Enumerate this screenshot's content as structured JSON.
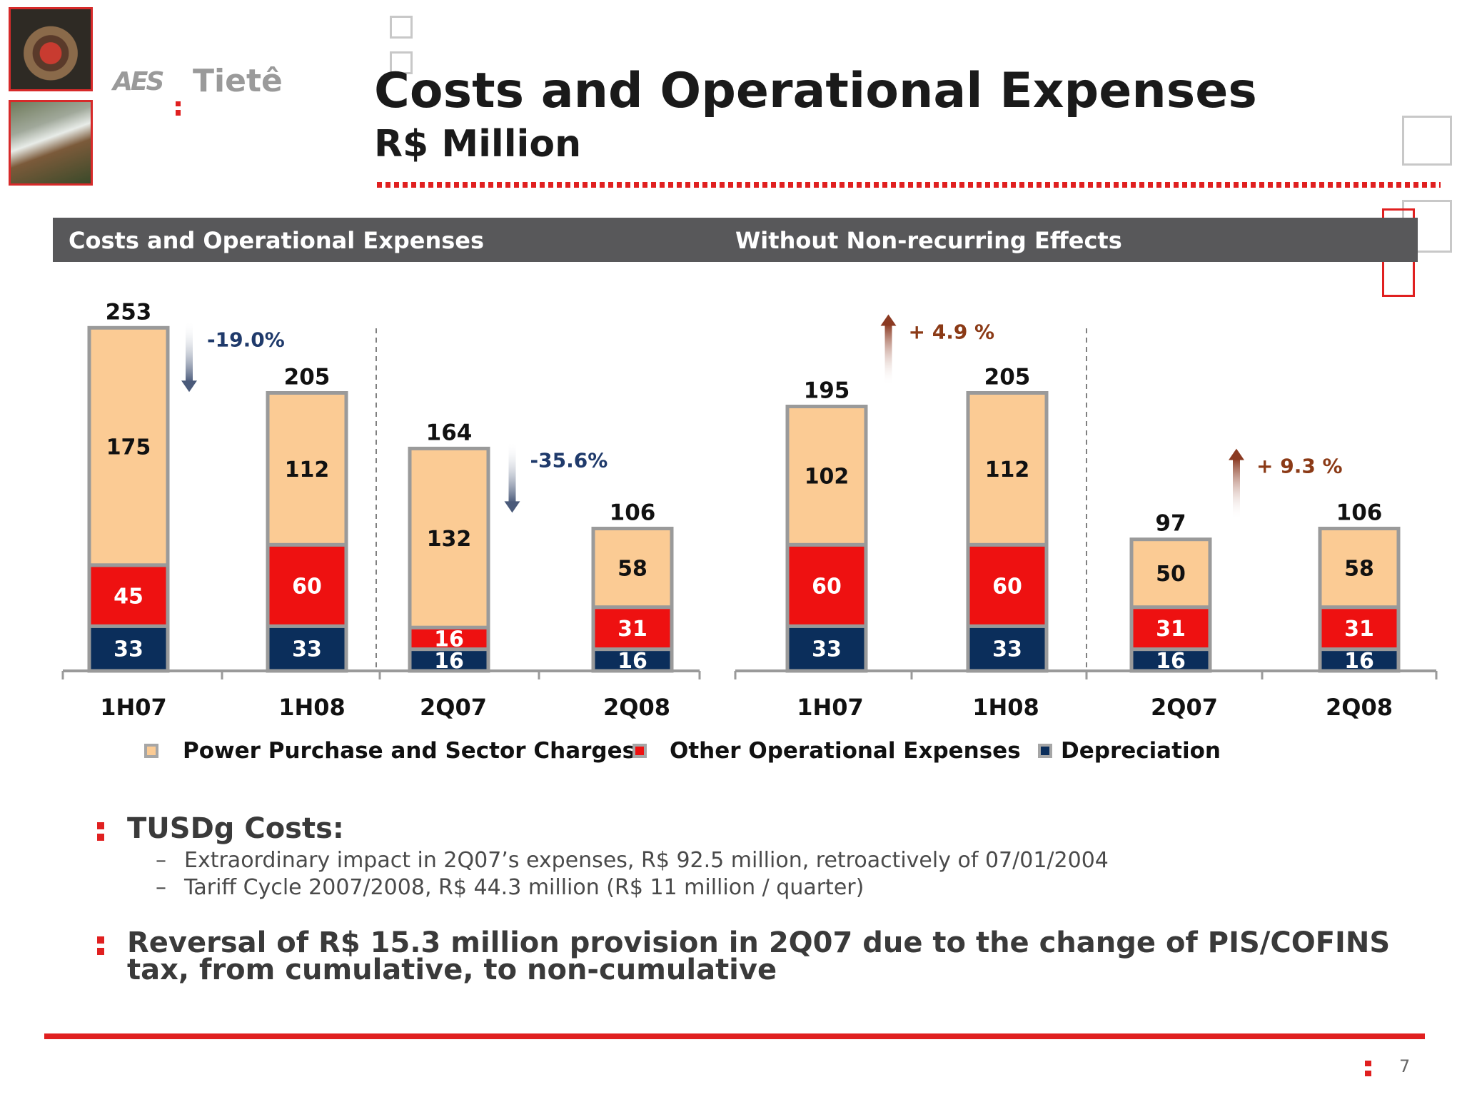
{
  "header": {
    "logo_mark": "AES",
    "logo_name": "Tietê",
    "title": "Costs and Operational Expenses",
    "subtitle": "R$ Million"
  },
  "section_bar": {
    "left_label": "Costs and Operational Expenses",
    "right_label": "Without Non-recurring Effects"
  },
  "colors": {
    "power": "#fbcb94",
    "other": "#ee1111",
    "depreciation": "#0b2e5b",
    "border": "#9a9a9a",
    "accent_red": "#e02020",
    "down_arrow": "#4a5a7a",
    "up_arrow": "#8b3a22"
  },
  "chart_data": [
    {
      "type": "bar",
      "stacked": true,
      "title": "Costs and Operational Expenses",
      "categories": [
        "1H07",
        "1H08",
        "2Q07",
        "2Q08"
      ],
      "series": [
        {
          "name": "Depreciation",
          "values": [
            33,
            33,
            16,
            16
          ]
        },
        {
          "name": "Other Operational Expenses",
          "values": [
            45,
            60,
            16,
            31
          ]
        },
        {
          "name": "Power Purchase and Sector Charges",
          "values": [
            175,
            112,
            132,
            58
          ]
        }
      ],
      "totals": [
        253,
        205,
        164,
        106
      ],
      "annotations": [
        {
          "label": "-19.0%",
          "direction": "down",
          "between": [
            "1H07",
            "1H08"
          ]
        },
        {
          "label": "-35.6%",
          "direction": "down",
          "between": [
            "2Q07",
            "2Q08"
          ]
        }
      ],
      "ylim": [
        0,
        260
      ]
    },
    {
      "type": "bar",
      "stacked": true,
      "title": "Without Non-recurring Effects",
      "categories": [
        "1H07",
        "1H08",
        "2Q07",
        "2Q08"
      ],
      "series": [
        {
          "name": "Depreciation",
          "values": [
            33,
            33,
            16,
            16
          ]
        },
        {
          "name": "Other Operational Expenses",
          "values": [
            60,
            60,
            31,
            31
          ]
        },
        {
          "name": "Power Purchase and Sector Charges",
          "values": [
            102,
            112,
            50,
            58
          ]
        }
      ],
      "totals": [
        195,
        205,
        97,
        106
      ],
      "annotations": [
        {
          "label": "+ 4.9 %",
          "direction": "up",
          "between": [
            "1H07",
            "1H08"
          ]
        },
        {
          "label": "+ 9.3 %",
          "direction": "up",
          "between": [
            "2Q07",
            "2Q08"
          ]
        }
      ],
      "ylim": [
        0,
        260
      ]
    }
  ],
  "legend": [
    {
      "label": "Power Purchase and Sector Charges",
      "color": "#fbcb94"
    },
    {
      "label": "Other Operational Expenses",
      "color": "#ee1111"
    },
    {
      "label": "Depreciation",
      "color": "#0b2e5b"
    }
  ],
  "bullets": {
    "b1": {
      "heading": "TUSDg Costs:",
      "subs": [
        "Extraordinary impact in 2Q07’s expenses, R$ 92.5 million, retroactively of 07/01/2004",
        "Tariff Cycle 2007/2008, R$ 44.3 million (R$ 11 million / quarter)"
      ]
    },
    "b2": "Reversal of R$ 15.3 million provision in 2Q07 due to the change of PIS/COFINS tax, from cumulative, to non-cumulative"
  },
  "footer": {
    "page_number": "7"
  }
}
